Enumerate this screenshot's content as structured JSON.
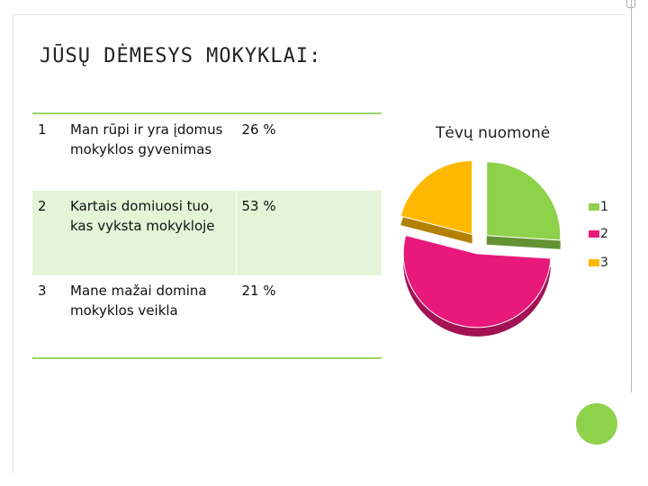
{
  "title": "JŪSŲ DĖMESYS MOKYKLAI:",
  "table": {
    "rows": [
      {
        "num": "1",
        "text": "Man rūpi ir yra įdomus mokyklos gyvenimas",
        "pct": "26 %"
      },
      {
        "num": "2",
        "text": "Kartais domiuosi tuo, kas vyksta mokykloje",
        "pct": "53 %"
      },
      {
        "num": "3",
        "text": "Mane mažai domina mokyklos veikla",
        "pct": "21 %"
      }
    ]
  },
  "chart_data": {
    "type": "pie",
    "title": "Tėvų nuomonė",
    "categories": [
      "1",
      "2",
      "3"
    ],
    "values": [
      26,
      53,
      21
    ],
    "colors": [
      "#8ed14a",
      "#e8197a",
      "#ffb800"
    ],
    "legend": "right",
    "exploded": true,
    "style": "3d"
  },
  "colors": {
    "accent_line": "#9bd46a",
    "row_shade": "#e3f4d7",
    "decor_circle": "#8ed14a"
  }
}
